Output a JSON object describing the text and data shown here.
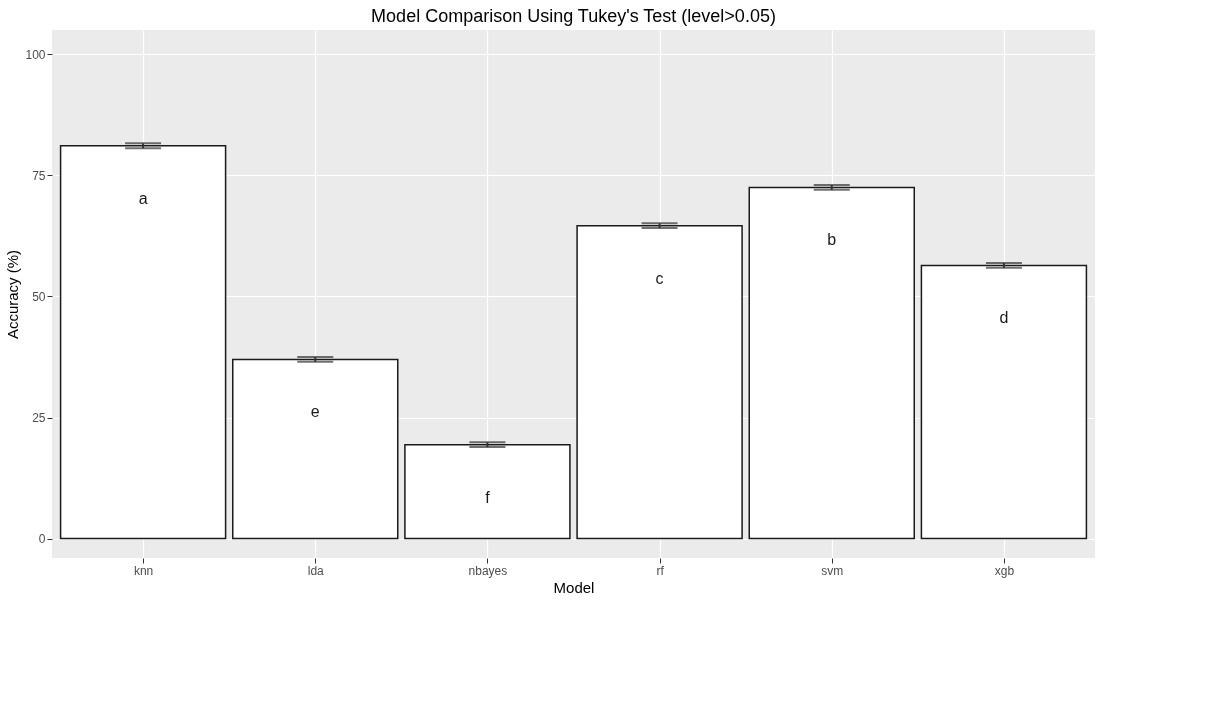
{
  "chart_data": {
    "type": "bar",
    "title": "Model Comparison Using Tukey's Test (level>0.05)",
    "xlabel": "Model",
    "ylabel": "Accuracy (%)",
    "categories": [
      "knn",
      "lda",
      "nbayes",
      "rf",
      "svm",
      "xgb"
    ],
    "series": [
      {
        "color": "#ffffff",
        "values": [
          81.1,
          37.0,
          19.4,
          64.6,
          72.5,
          56.4
        ],
        "errors": [
          0.5,
          0.5,
          0.5,
          0.5,
          0.5,
          0.5
        ]
      }
    ],
    "ylim": [
      -4,
      105
    ],
    "yticks": [
      0,
      25,
      50,
      75,
      100
    ],
    "grid": true,
    "annotations": [
      "a",
      "e",
      "f",
      "c",
      "b",
      "d"
    ]
  }
}
